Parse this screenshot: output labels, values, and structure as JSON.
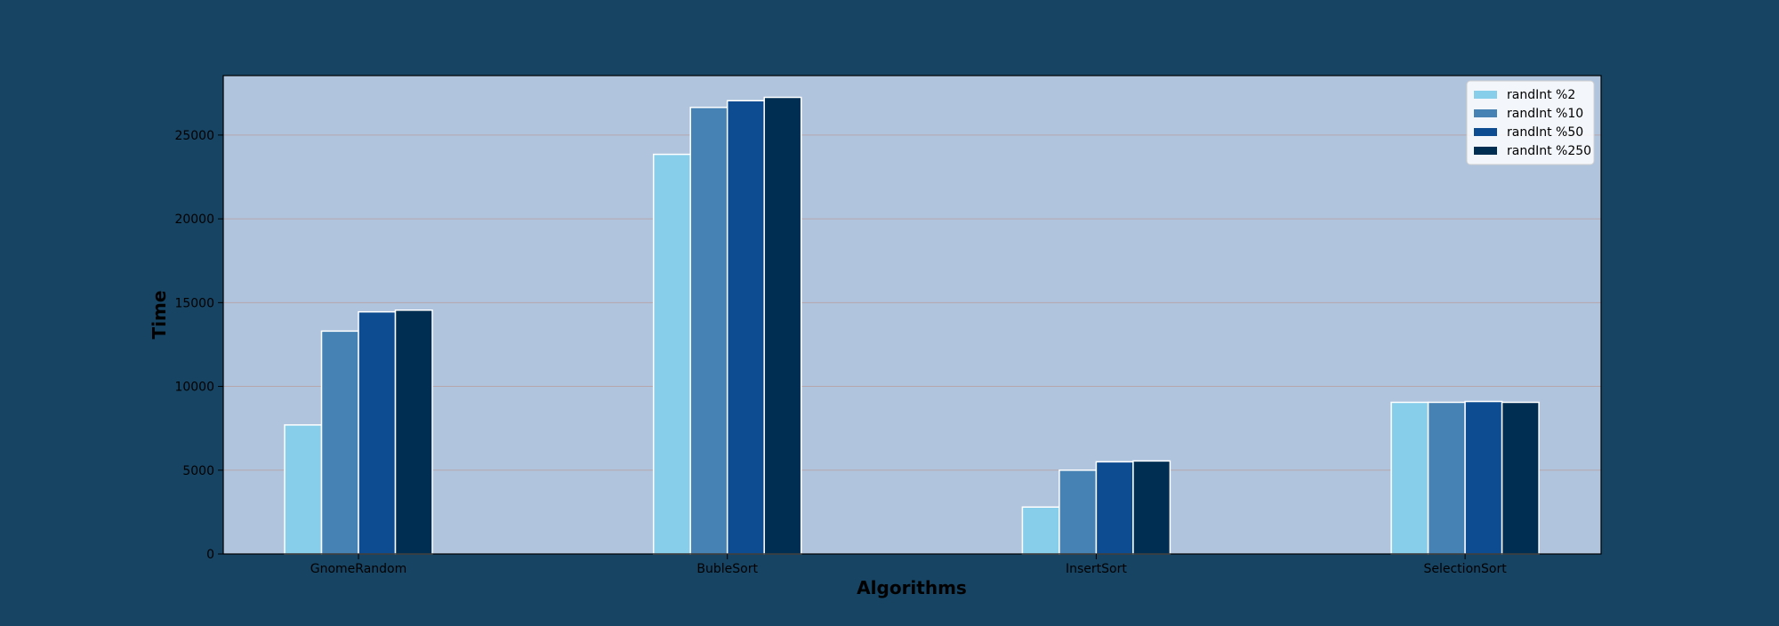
{
  "chart_data": {
    "type": "bar",
    "title": "",
    "xlabel": "Algorithms",
    "ylabel": "Time",
    "categories": [
      "GnomeRandom",
      "BubleSort",
      "InsertSort",
      "SelectionSort"
    ],
    "series": [
      {
        "name": "randInt %2",
        "values": [
          7700,
          23850,
          2800,
          9050
        ]
      },
      {
        "name": "randInt %10",
        "values": [
          13300,
          26650,
          5000,
          9050
        ]
      },
      {
        "name": "randInt %50",
        "values": [
          14450,
          27050,
          5500,
          9100
        ]
      },
      {
        "name": "randInt %250",
        "values": [
          14550,
          27250,
          5550,
          9050
        ]
      }
    ],
    "ylim": [
      0,
      28550
    ],
    "yticks": [
      0,
      5000,
      10000,
      15000,
      20000,
      25000
    ],
    "grid": true,
    "legend_position": "top-right"
  },
  "colors": {
    "figure_background": "#174463",
    "plot_background": "#b0c4de",
    "series": [
      "#87ceeb",
      "#4682b4",
      "#0e4c92",
      "#002e53"
    ],
    "bar_edge": "#ffffff",
    "grid": "#b6a7ac"
  }
}
